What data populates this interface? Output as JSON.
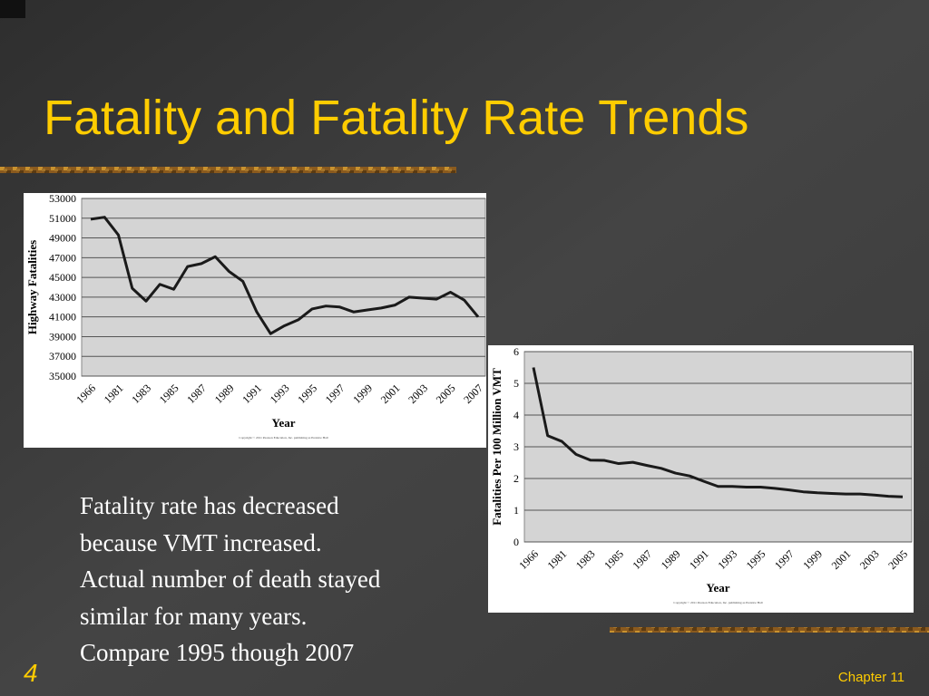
{
  "title": "Fatality and Fatality Rate Trends",
  "body": [
    "Fatality rate has decreased",
    "because VMT increased.",
    "Actual number of death stayed",
    "similar for many years.",
    "Compare 1995 though 2007"
  ],
  "slide_number": "4",
  "footer": "Chapter 11",
  "chart_data": [
    {
      "type": "line",
      "y_label": "Highway Fatalities",
      "x_label": "Year",
      "copyright": "Copyright © 2011 Pearson Education, Inc. publishing as Prentice Hall",
      "categories": [
        "1966",
        null,
        "1981",
        null,
        "1983",
        null,
        "1985",
        null,
        "1987",
        null,
        "1989",
        null,
        "1991",
        null,
        "1993",
        null,
        "1995",
        null,
        "1997",
        null,
        "1999",
        null,
        "2001",
        null,
        "2003",
        null,
        "2005",
        null,
        "2007"
      ],
      "values": [
        50900,
        51100,
        49300,
        43900,
        42600,
        44300,
        43800,
        46100,
        46400,
        47100,
        45600,
        44600,
        41500,
        39300,
        40100,
        40700,
        41800,
        42100,
        42000,
        41500,
        41700,
        41900,
        42200,
        43000,
        42900,
        42800,
        43500,
        42700,
        41000
      ],
      "color": "#1a1a1a",
      "grid": true,
      "ylim": [
        35000,
        53000
      ],
      "yticks": [
        35000,
        37000,
        39000,
        41000,
        43000,
        45000,
        47000,
        49000,
        51000,
        53000
      ]
    },
    {
      "type": "line",
      "y_label": "Fatalities Per 100 Million VMT",
      "x_label": "Year",
      "copyright": "Copyright © 2011 Pearson Education, Inc. publishing as Prentice Hall",
      "categories": [
        "1966",
        null,
        "1981",
        null,
        "1983",
        null,
        "1985",
        null,
        "1987",
        null,
        "1989",
        null,
        "1991",
        null,
        "1993",
        null,
        "1995",
        null,
        "1997",
        null,
        "1999",
        null,
        "2001",
        null,
        "2003",
        null,
        "2005"
      ],
      "values": [
        5.5,
        3.35,
        3.17,
        2.76,
        2.58,
        2.57,
        2.47,
        2.51,
        2.41,
        2.32,
        2.17,
        2.08,
        1.91,
        1.75,
        1.75,
        1.73,
        1.73,
        1.69,
        1.64,
        1.58,
        1.55,
        1.53,
        1.51,
        1.51,
        1.48,
        1.44,
        1.42
      ],
      "color": "#1a1a1a",
      "grid": true,
      "ylim": [
        0,
        6
      ],
      "yticks": [
        0,
        1,
        2,
        3,
        4,
        5,
        6
      ]
    }
  ]
}
